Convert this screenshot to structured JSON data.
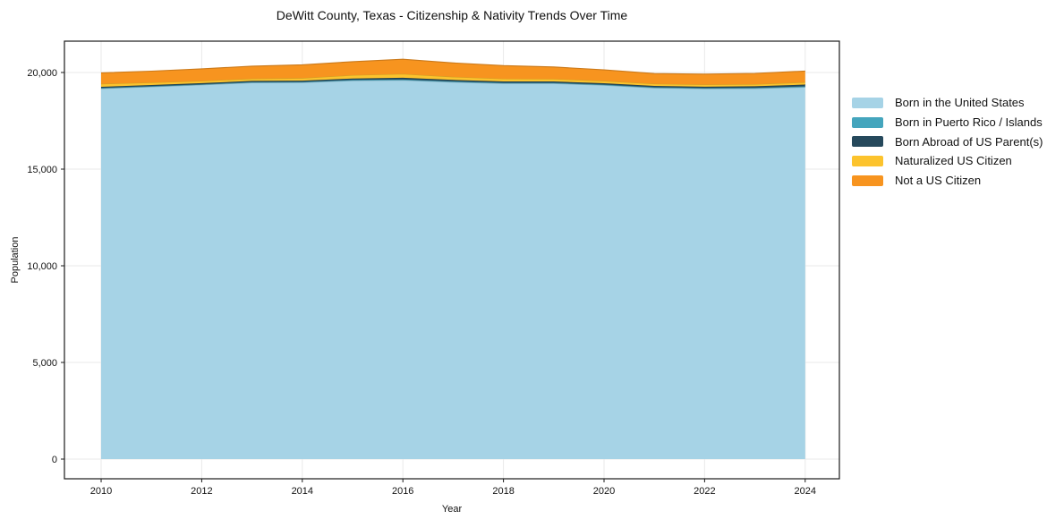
{
  "title": "DeWitt County, Texas - Citizenship & Nativity Trends Over Time",
  "chart_data": {
    "type": "area",
    "stacked": true,
    "title": "DeWitt County, Texas - Citizenship & Nativity Trends Over Time",
    "xlabel": "Year",
    "ylabel": "Population",
    "x": [
      2010,
      2011,
      2012,
      2013,
      2014,
      2015,
      2016,
      2017,
      2018,
      2019,
      2020,
      2021,
      2022,
      2023,
      2024
    ],
    "series": [
      {
        "name": "Born in the United States",
        "color": "#a6d3e6",
        "values": [
          19170,
          19260,
          19360,
          19470,
          19480,
          19580,
          19600,
          19500,
          19430,
          19430,
          19340,
          19200,
          19160,
          19170,
          19240
        ]
      },
      {
        "name": "Born in Puerto Rico / Islands",
        "color": "#44a5bd",
        "values": [
          30,
          30,
          30,
          35,
          35,
          40,
          45,
          40,
          35,
          35,
          35,
          35,
          35,
          40,
          45
        ]
      },
      {
        "name": "Born Abroad of US Parent(s)",
        "color": "#26495c",
        "values": [
          60,
          60,
          60,
          60,
          65,
          70,
          80,
          75,
          70,
          70,
          70,
          70,
          70,
          75,
          90
        ]
      },
      {
        "name": "Naturalized US Citizen",
        "color": "#fcc32d",
        "values": [
          150,
          130,
          110,
          115,
          130,
          170,
          200,
          160,
          140,
          130,
          120,
          110,
          110,
          110,
          120
        ]
      },
      {
        "name": "Not a US Citizen",
        "color": "#f7941f",
        "values": [
          570,
          590,
          630,
          650,
          690,
          700,
          760,
          720,
          680,
          620,
          570,
          530,
          540,
          560,
          580
        ]
      }
    ],
    "xticks": [
      2010,
      2012,
      2014,
      2016,
      2018,
      2020,
      2022,
      2024
    ],
    "yticks": [
      0,
      5000,
      10000,
      15000,
      20000
    ],
    "xlim": [
      2009.27,
      2024.68
    ],
    "ylim": [
      -1019,
      21620
    ],
    "grid": true,
    "grid_color": "#e9e9e9",
    "spine_color": "#1a1a1a",
    "legend_position": "right"
  }
}
